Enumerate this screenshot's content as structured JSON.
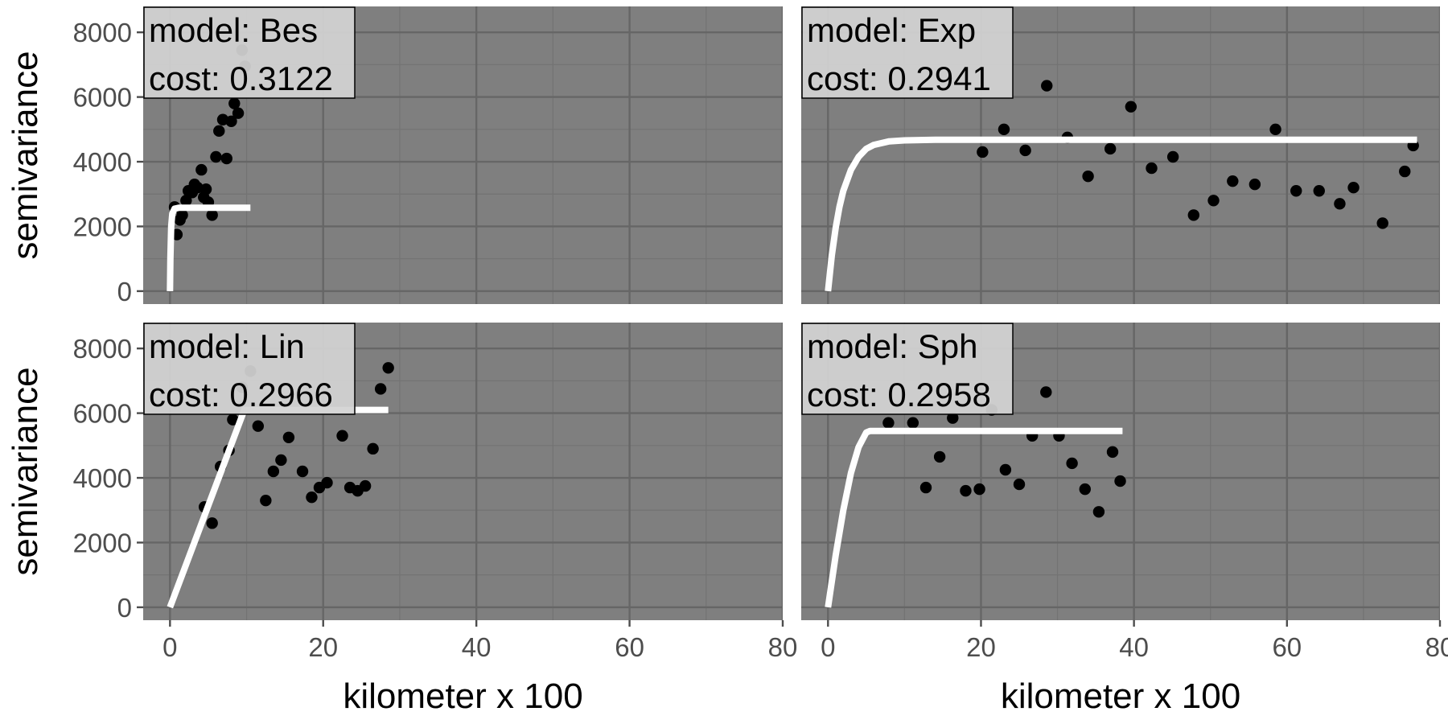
{
  "chart_data": {
    "type": "scatter",
    "layout": "2x2 facet grid",
    "xlabel": "kilometer x 100",
    "ylabel": "semivariance",
    "xlim": [
      -3.5,
      80
    ],
    "ylim": [
      -400,
      8800
    ],
    "x_ticks": [
      0,
      20,
      40,
      60,
      80
    ],
    "y_ticks": [
      0,
      2000,
      4000,
      6000,
      8000
    ],
    "grid": true,
    "legend": "none",
    "colors": {
      "panel_background": "#7f7f7f",
      "grid_major": "#666666",
      "grid_minor": "#737373",
      "points": "#000000",
      "fit_line": "#ffffff",
      "label_box": "#d3d3d3"
    },
    "panels": [
      {
        "model_label": "model: Bes",
        "cost_label": "cost: 0.3122",
        "points": [
          [
            0.9,
            1750
          ],
          [
            0.6,
            2600
          ],
          [
            1.3,
            2200
          ],
          [
            1.6,
            2350
          ],
          [
            2.1,
            2800
          ],
          [
            2.4,
            3100
          ],
          [
            2.9,
            3050
          ],
          [
            3.2,
            3300
          ],
          [
            3.6,
            3200
          ],
          [
            4.1,
            3750
          ],
          [
            4.4,
            2900
          ],
          [
            4.7,
            3150
          ],
          [
            5.0,
            2750
          ],
          [
            5.5,
            2350
          ],
          [
            6.0,
            4150
          ],
          [
            6.4,
            4950
          ],
          [
            6.9,
            5300
          ],
          [
            7.4,
            4100
          ],
          [
            8.0,
            5250
          ],
          [
            8.4,
            5800
          ],
          [
            8.9,
            5500
          ],
          [
            9.4,
            7450
          ],
          [
            9.8,
            6950
          ]
        ],
        "fit": [
          [
            0,
            0
          ],
          [
            0.05,
            1000
          ],
          [
            0.15,
            2000
          ],
          [
            0.3,
            2400
          ],
          [
            0.6,
            2550
          ],
          [
            1.2,
            2580
          ],
          [
            10.5,
            2580
          ]
        ]
      },
      {
        "model_label": "model: Exp",
        "cost_label": "cost: 0.2941",
        "points": [
          [
            20.2,
            4300
          ],
          [
            23,
            5000
          ],
          [
            25.8,
            4350
          ],
          [
            28.6,
            6350
          ],
          [
            31.3,
            4750
          ],
          [
            34,
            3550
          ],
          [
            36.9,
            4400
          ],
          [
            39.6,
            5700
          ],
          [
            42.3,
            3800
          ],
          [
            45.1,
            4150
          ],
          [
            47.8,
            2350
          ],
          [
            50.4,
            2800
          ],
          [
            52.9,
            3400
          ],
          [
            55.8,
            3300
          ],
          [
            58.5,
            5000
          ],
          [
            61.2,
            3100
          ],
          [
            64.2,
            3100
          ],
          [
            66.9,
            2700
          ],
          [
            68.7,
            3200
          ],
          [
            72.5,
            2100
          ],
          [
            75.4,
            3700
          ],
          [
            76.5,
            4500
          ]
        ],
        "fit": [
          [
            0,
            0
          ],
          [
            0.5,
            1100
          ],
          [
            1,
            1950
          ],
          [
            1.5,
            2600
          ],
          [
            2,
            3100
          ],
          [
            3,
            3750
          ],
          [
            4,
            4150
          ],
          [
            5,
            4400
          ],
          [
            6,
            4520
          ],
          [
            8,
            4630
          ],
          [
            10,
            4660
          ],
          [
            14,
            4680
          ],
          [
            20,
            4680
          ],
          [
            77,
            4680
          ]
        ]
      },
      {
        "model_label": "model: Lin",
        "cost_label": "cost: 0.2966",
        "points": [
          [
            4.5,
            3100
          ],
          [
            5.5,
            2600
          ],
          [
            6.6,
            4350
          ],
          [
            7.7,
            4850
          ],
          [
            8.2,
            5800
          ],
          [
            9.4,
            6800
          ],
          [
            10.5,
            7300
          ],
          [
            11.5,
            5600
          ],
          [
            12.5,
            3300
          ],
          [
            13.5,
            4200
          ],
          [
            14.5,
            4550
          ],
          [
            15.5,
            5250
          ],
          [
            17.3,
            4200
          ],
          [
            18.5,
            3400
          ],
          [
            19.5,
            3700
          ],
          [
            20.5,
            3850
          ],
          [
            22.5,
            5300
          ],
          [
            23.5,
            3700
          ],
          [
            24.5,
            3600
          ],
          [
            25.5,
            3750
          ],
          [
            26.5,
            4900
          ],
          [
            27.5,
            6750
          ],
          [
            28.5,
            7400
          ]
        ],
        "fit": [
          [
            0,
            0
          ],
          [
            9.7,
            6100
          ],
          [
            28.5,
            6100
          ]
        ]
      },
      {
        "model_label": "model: Sph",
        "cost_label": "cost: 0.2958",
        "points": [
          [
            7.9,
            5700
          ],
          [
            11.1,
            5700
          ],
          [
            12.8,
            3700
          ],
          [
            14.6,
            4650
          ],
          [
            16.3,
            5850
          ],
          [
            18,
            3600
          ],
          [
            19.8,
            3650
          ],
          [
            21.4,
            6100
          ],
          [
            23.2,
            4250
          ],
          [
            25,
            3800
          ],
          [
            26.7,
            5300
          ],
          [
            28.5,
            6650
          ],
          [
            30.2,
            5300
          ],
          [
            31.9,
            4450
          ],
          [
            33.6,
            3650
          ],
          [
            35.4,
            2950
          ],
          [
            37.2,
            4800
          ],
          [
            38.2,
            3900
          ]
        ],
        "fit": [
          [
            0,
            0
          ],
          [
            1,
            1600
          ],
          [
            2,
            3000
          ],
          [
            3,
            4150
          ],
          [
            4,
            4950
          ],
          [
            5,
            5400
          ],
          [
            5.5,
            5450
          ],
          [
            38.5,
            5450
          ]
        ]
      }
    ]
  }
}
